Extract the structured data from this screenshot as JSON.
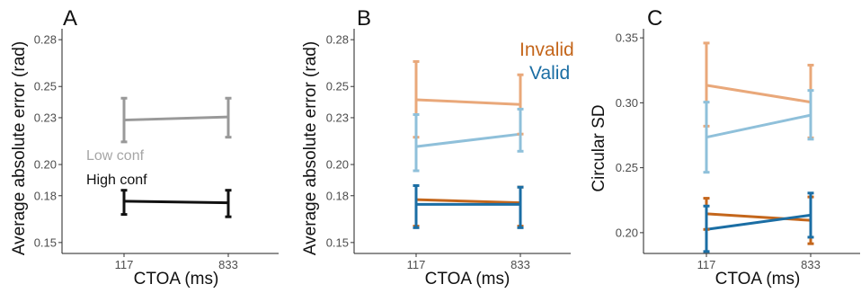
{
  "chart_data": [
    {
      "type": "line",
      "panel_label": "A",
      "xlabel": "CTOA (ms)",
      "ylabel": "Average absolute error (rad)",
      "categories": [
        "117",
        "833"
      ],
      "yticks": [
        "0.15",
        "0.18",
        "0.20",
        "0.23",
        "0.25",
        "0.28"
      ],
      "ylim": [
        0.143,
        0.287
      ],
      "grid": false,
      "series": [
        {
          "name": "Low conf",
          "color": "#999999",
          "values": [
            0.2285,
            0.2305
          ],
          "err_low": [
            0.2145,
            0.2175
          ],
          "err_high": [
            0.2425,
            0.2425
          ]
        },
        {
          "name": "High conf",
          "color": "#111111",
          "values": [
            0.1765,
            0.1755
          ],
          "err_low": [
            0.168,
            0.1665
          ],
          "err_high": [
            0.1835,
            0.1835
          ]
        }
      ]
    },
    {
      "type": "line",
      "panel_label": "B",
      "xlabel": "CTOA (ms)",
      "ylabel": "Average absolute error (rad)",
      "categories": [
        "117",
        "833"
      ],
      "yticks": [
        "0.15",
        "0.18",
        "0.20",
        "0.23",
        "0.25",
        "0.28"
      ],
      "ylim": [
        0.143,
        0.287
      ],
      "grid": false,
      "legend": "top-right",
      "series": [
        {
          "name": "Invalid",
          "color": "#e9a87a",
          "values": [
            0.2415,
            0.2385
          ],
          "err_low": [
            0.2175,
            0.2195
          ],
          "err_high": [
            0.266,
            0.2575
          ]
        },
        {
          "name": "Valid",
          "color": "#8fc0da",
          "values": [
            0.2115,
            0.2195
          ],
          "err_low": [
            0.196,
            0.2085
          ],
          "err_high": [
            0.232,
            0.2355
          ]
        },
        {
          "name": "Invalid",
          "color": "#c4661b",
          "values": [
            0.1775,
            0.1755
          ],
          "err_low": [
            0.1605,
            0.1605
          ],
          "err_high": [
            0.1865,
            0.1855
          ]
        },
        {
          "name": "Valid",
          "color": "#1b6ea4",
          "values": [
            0.1745,
            0.1745
          ],
          "err_low": [
            0.1595,
            0.1595
          ],
          "err_high": [
            0.1865,
            0.1855
          ]
        }
      ]
    },
    {
      "type": "line",
      "panel_label": "C",
      "xlabel": "CTOA (ms)",
      "ylabel": "Circular SD",
      "categories": [
        "117",
        "833"
      ],
      "yticks": [
        "0.20",
        "0.25",
        "0.30",
        "0.35"
      ],
      "ylim": [
        0.184,
        0.357
      ],
      "grid": false,
      "series": [
        {
          "name": "Invalid",
          "color": "#e9a87a",
          "values": [
            0.3135,
            0.3005
          ],
          "err_low": [
            0.282,
            0.273
          ],
          "err_high": [
            0.346,
            0.329
          ]
        },
        {
          "name": "Valid",
          "color": "#8fc0da",
          "values": [
            0.2735,
            0.2905
          ],
          "err_low": [
            0.2465,
            0.272
          ],
          "err_high": [
            0.3005,
            0.3095
          ]
        },
        {
          "name": "Invalid",
          "color": "#c4661b",
          "values": [
            0.2145,
            0.2095
          ],
          "err_low": [
            0.2025,
            0.1915
          ],
          "err_high": [
            0.2265,
            0.2275
          ]
        },
        {
          "name": "Valid",
          "color": "#1b6ea4",
          "values": [
            0.2025,
            0.2135
          ],
          "err_low": [
            0.1855,
            0.1965
          ],
          "err_high": [
            0.2205,
            0.2305
          ]
        }
      ]
    }
  ],
  "annotations": {
    "low_conf": "Low conf",
    "high_conf": "High conf",
    "legend_invalid": "Invalid",
    "legend_valid": "Valid",
    "invalid_color": "#c4661b",
    "valid_color": "#1b6ea4",
    "low_conf_color": "#999999",
    "high_conf_color": "#111111"
  }
}
